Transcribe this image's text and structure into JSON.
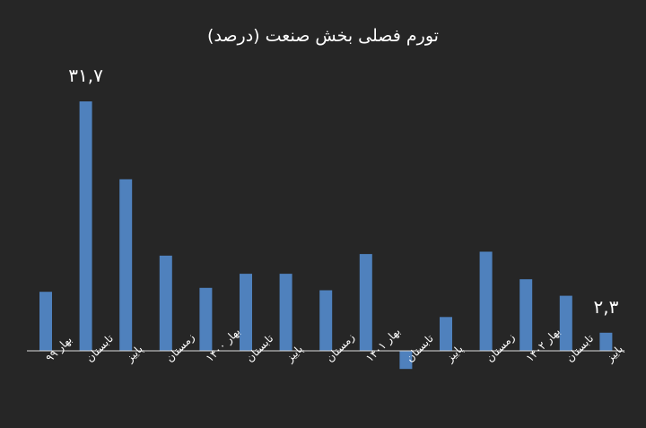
{
  "chart_data": {
    "type": "bar",
    "title": "تورم فصلی بخش صنعت (درصد)",
    "xlabel": "",
    "ylabel": "",
    "categories": [
      "بهار ۹۹",
      "تابستان",
      "پاییز",
      "زمستان",
      "بهار ۱۴۰۰",
      "تابستان",
      "پاییز",
      "زمستان",
      "بهار ۱۴۰۱",
      "تابستان",
      "پاییز",
      "زمستان",
      "بهار ۱۴۰۲",
      "تابستان",
      "پاییز"
    ],
    "values": [
      7.5,
      31.7,
      21.8,
      12.1,
      8.0,
      9.8,
      9.8,
      7.7,
      12.3,
      -2.3,
      4.3,
      12.6,
      9.1,
      7.0,
      2.3
    ],
    "data_labels": [
      {
        "index": 1,
        "text": "۳۱,۷"
      },
      {
        "index": 14,
        "text": "۲,۳"
      }
    ],
    "grid": false,
    "legend": "none",
    "colors": {
      "bar": "#4F81BD",
      "axis": "#D9D9D9",
      "text": "#FFFFFF",
      "background": "#262626"
    }
  }
}
